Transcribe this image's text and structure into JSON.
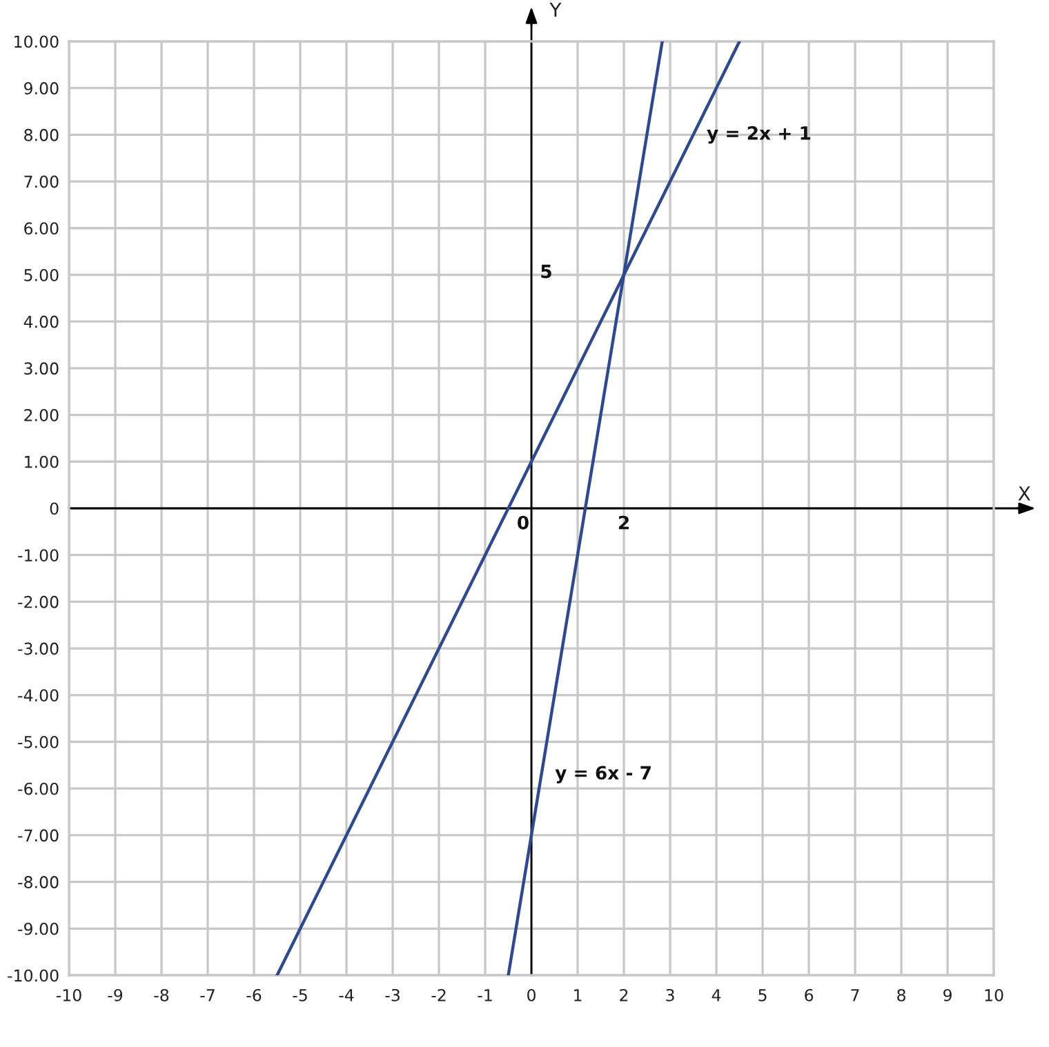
{
  "chart_data": {
    "type": "line",
    "xlabel": "X",
    "ylabel": "Y",
    "series": [
      {
        "color": "#2e4a8c",
        "x": [
          -5.5,
          4.5
        ],
        "values": [
          -10,
          10
        ]
      },
      {
        "color": "#2e4a8c",
        "x": [
          -0.5,
          2.83
        ],
        "values": [
          -10,
          10
        ]
      }
    ],
    "xlim": [
      -10,
      10
    ],
    "ylim": [
      -10,
      10
    ],
    "xticks": [
      -10,
      -9,
      -8,
      -7,
      -6,
      -5,
      -4,
      -3,
      -2,
      -1,
      0,
      1,
      2,
      3,
      4,
      5,
      6,
      7,
      8,
      9,
      10
    ],
    "yticks": [
      {
        "value": 10,
        "label": "10.00"
      },
      {
        "value": 9,
        "label": "9.00"
      },
      {
        "value": 8,
        "label": "8.00"
      },
      {
        "value": 7,
        "label": "7.00"
      },
      {
        "value": 6,
        "label": "6.00"
      },
      {
        "value": 5,
        "label": "5.00"
      },
      {
        "value": 4,
        "label": "4.00"
      },
      {
        "value": 3,
        "label": "3.00"
      },
      {
        "value": 2,
        "label": "2.00"
      },
      {
        "value": 1,
        "label": "1.00"
      },
      0,
      {
        "value": -1,
        "label": "-1.00"
      },
      {
        "value": -2,
        "label": "-2.00"
      },
      {
        "value": -3,
        "label": "-3.00"
      },
      {
        "value": -4,
        "label": "-4.00"
      },
      {
        "value": -5,
        "label": "-5.00"
      },
      {
        "value": -6,
        "label": "-6.00"
      },
      {
        "value": -7,
        "label": "-7.00"
      },
      {
        "value": -8,
        "label": "-8.00"
      },
      {
        "value": -9,
        "label": "-9.00"
      },
      {
        "value": -10,
        "label": "-10.00"
      }
    ],
    "grid": true,
    "marker": "none",
    "line_style": "solid",
    "annotations": [
      {
        "text": "y = 2x + 1",
        "x": 3.5,
        "y": 8
      },
      "5",
      "0",
      "2",
      {
        "text": "y = 6x - 7",
        "x": 0.22,
        "y": -5.7
      }
    ]
  }
}
